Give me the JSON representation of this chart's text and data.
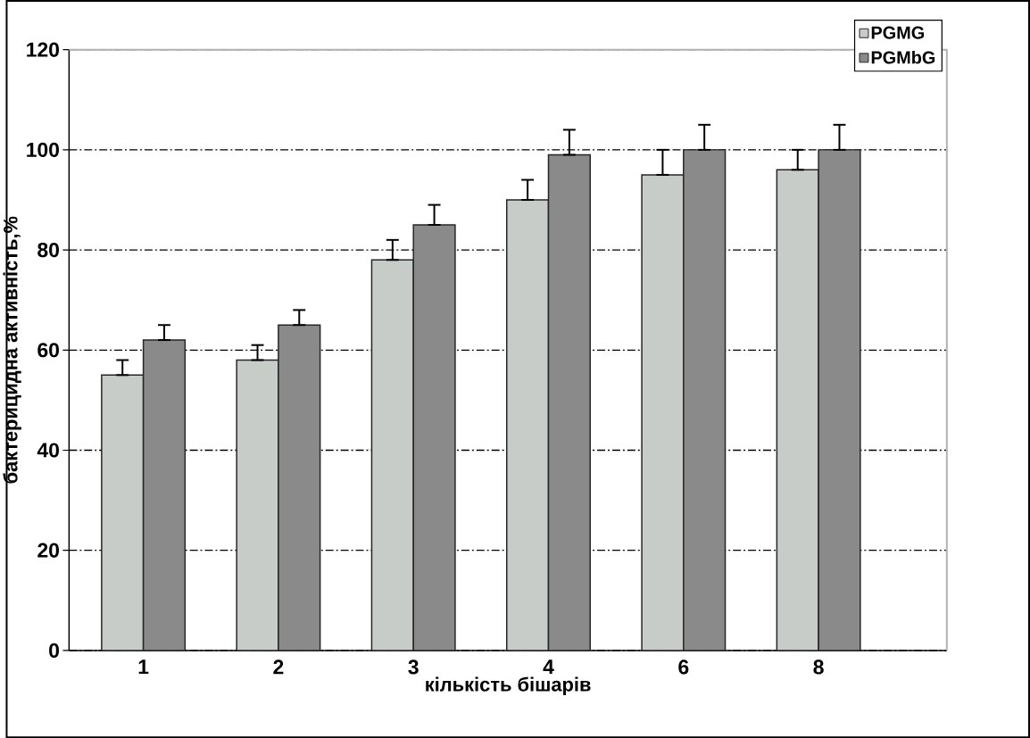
{
  "chart_data": {
    "type": "bar",
    "xlabel": "кількість бішарів",
    "ylabel": "бактерицидна активність,%",
    "categories": [
      "1",
      "2",
      "3",
      "4",
      "6",
      "8"
    ],
    "series": [
      {
        "name": "PGMG",
        "color": "#c8ccc8",
        "values": [
          55,
          58,
          78,
          90,
          95,
          96
        ],
        "errors": [
          [
            55,
            58
          ],
          [
            58,
            61
          ],
          [
            78,
            82
          ],
          [
            90,
            94
          ],
          [
            95,
            100
          ],
          [
            96,
            100
          ]
        ]
      },
      {
        "name": "PGMbG",
        "color": "#8a8a8a",
        "values": [
          62,
          65,
          85,
          99,
          100,
          100
        ],
        "errors": [
          [
            62,
            65
          ],
          [
            65,
            68
          ],
          [
            85,
            89
          ],
          [
            99,
            104
          ],
          [
            100,
            105
          ],
          [
            100,
            105
          ]
        ]
      }
    ],
    "ylim": [
      0,
      120
    ],
    "yticks": [
      0,
      20,
      40,
      60,
      80,
      100,
      120
    ],
    "grid": "y",
    "legend": "top right"
  }
}
